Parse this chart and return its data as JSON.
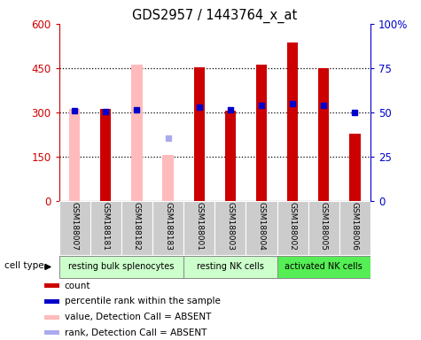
{
  "title": "GDS2957 / 1443764_x_at",
  "samples": [
    "GSM188007",
    "GSM188181",
    "GSM188182",
    "GSM188183",
    "GSM188001",
    "GSM188003",
    "GSM188004",
    "GSM188002",
    "GSM188005",
    "GSM188006"
  ],
  "count_values": [
    null,
    310,
    null,
    null,
    453,
    305,
    462,
    536,
    448,
    228
  ],
  "count_absent": [
    310,
    null,
    460,
    155,
    null,
    null,
    null,
    null,
    null,
    null
  ],
  "percentile_values_left": [
    305,
    302,
    308,
    null,
    318,
    308,
    323,
    328,
    322,
    300
  ],
  "percentile_absent_left": [
    null,
    null,
    null,
    212,
    null,
    null,
    null,
    null,
    null,
    null
  ],
  "count_color": "#cc0000",
  "count_absent_color": "#ffbbbb",
  "percentile_color": "#0000cc",
  "percentile_absent_color": "#aaaaee",
  "ylim_left": [
    0,
    600
  ],
  "ylim_right": [
    0,
    100
  ],
  "yticks_left": [
    0,
    150,
    300,
    450,
    600
  ],
  "yticks_right": [
    0,
    25,
    50,
    75,
    100
  ],
  "ytick_labels_right": [
    "0",
    "25",
    "50",
    "75",
    "100%"
  ],
  "bar_width": 0.35,
  "cell_groups": [
    {
      "label": "resting bulk splenocytes",
      "start": 0,
      "end": 4,
      "color": "#ccffcc"
    },
    {
      "label": "resting NK cells",
      "start": 4,
      "end": 7,
      "color": "#ccffcc"
    },
    {
      "label": "activated NK cells",
      "start": 7,
      "end": 10,
      "color": "#55ee55"
    }
  ],
  "cell_type_label": "cell type",
  "legend_items": [
    {
      "label": "count",
      "color": "#cc0000"
    },
    {
      "label": "percentile rank within the sample",
      "color": "#0000cc"
    },
    {
      "label": "value, Detection Call = ABSENT",
      "color": "#ffbbbb"
    },
    {
      "label": "rank, Detection Call = ABSENT",
      "color": "#aaaaee"
    }
  ],
  "background_color": "#ffffff",
  "plot_bg_color": "#ffffff",
  "sample_bg_color": "#cccccc"
}
